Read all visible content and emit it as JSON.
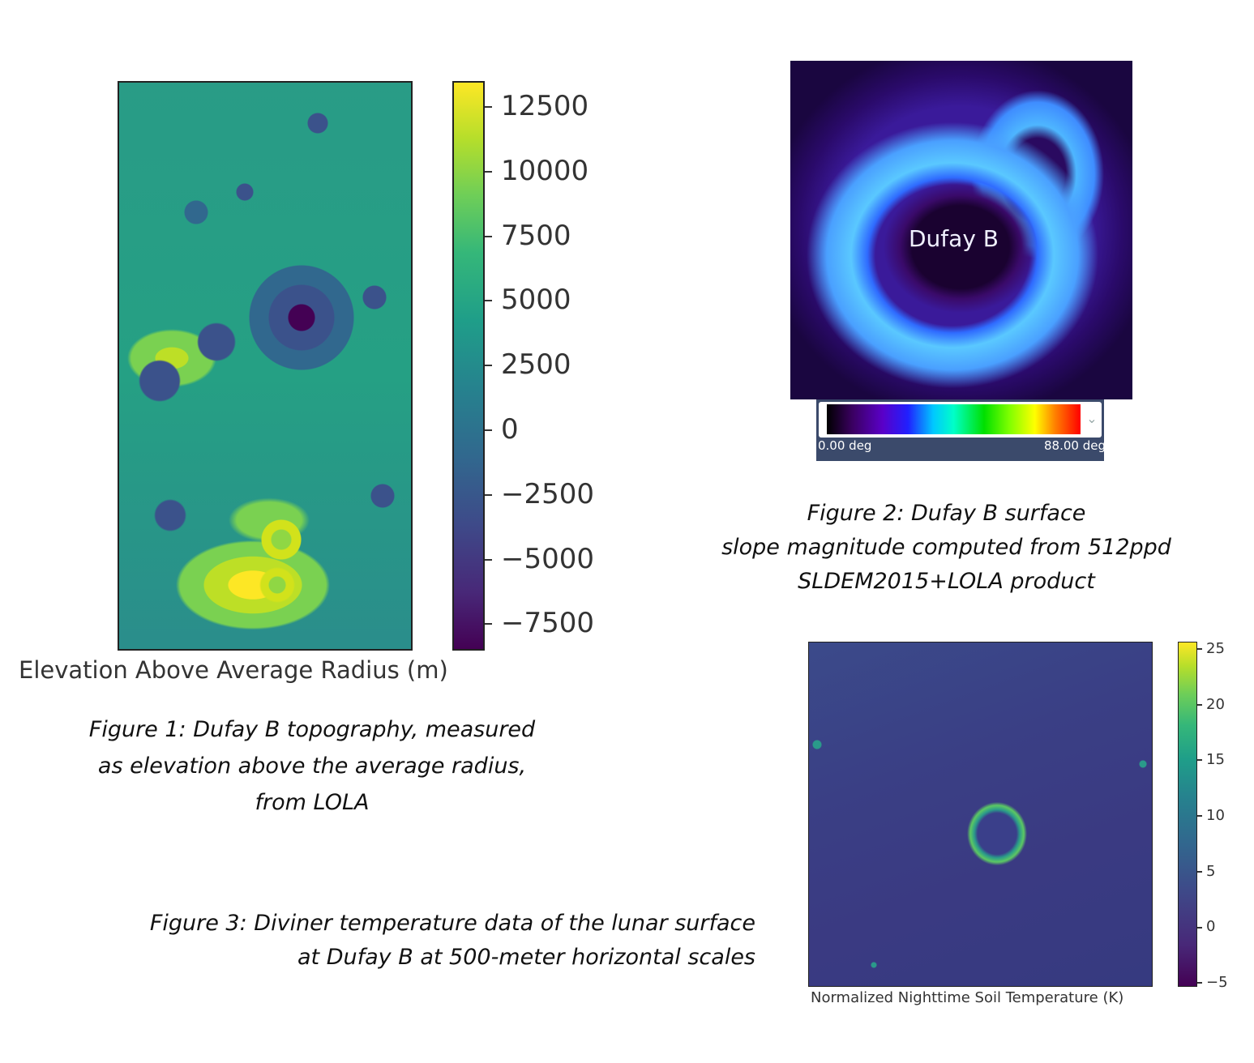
{
  "figure1": {
    "colorbar": {
      "ticks": [
        "12500",
        "10000",
        "7500",
        "5000",
        "2500",
        "0",
        "−2500",
        "−5000",
        "−7500"
      ],
      "label": "Elevation Above Average Radius (m)",
      "colormap": "viridis"
    },
    "caption_lines": [
      "Figure 1: Dufay B topography, measured",
      "as elevation above the average radius,",
      "from LOLA"
    ]
  },
  "figure2": {
    "map_label": "Dufay B",
    "colorbar": {
      "min_label": "0.00 deg",
      "max_label": "88.00 deg"
    },
    "caption_lines": [
      "Figure 2: Dufay B surface",
      "slope magnitude computed  from 512ppd",
      "SLDEM2015+LOLA product"
    ]
  },
  "figure3": {
    "colorbar": {
      "ticks": [
        "25",
        "20",
        "15",
        "10",
        "5",
        "0",
        "−5"
      ],
      "label": "Normalized Nighttime Soil Temperature (K)",
      "colormap": "viridis"
    },
    "caption_lines": [
      "Figure 3: Diviner temperature data of the lunar surface",
      "at Dufay B  at 500-meter horizontal scales"
    ]
  }
}
